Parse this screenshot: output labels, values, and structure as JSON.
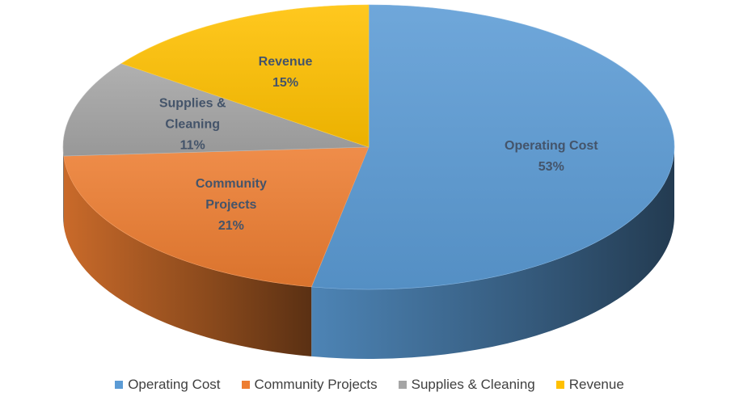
{
  "chart_data": {
    "type": "pie",
    "style": "3d",
    "title": "",
    "legend_position": "bottom",
    "slices": [
      {
        "name": "Operating Cost",
        "label_lines": [
          "Operating Cost",
          "53%"
        ],
        "value": 53,
        "color": "#5b9bd5"
      },
      {
        "name": "Community Projects",
        "label_lines": [
          "Community",
          "Projects",
          "21%"
        ],
        "value": 21,
        "color": "#ed7d31"
      },
      {
        "name": "Supplies & Cleaning",
        "label_lines": [
          "Supplies &",
          "Cleaning",
          "11%"
        ],
        "value": 11,
        "color": "#a5a5a5"
      },
      {
        "name": "Revenue",
        "label_lines": [
          "Revenue",
          "15%"
        ],
        "value": 15,
        "color": "#ffc000"
      }
    ]
  }
}
